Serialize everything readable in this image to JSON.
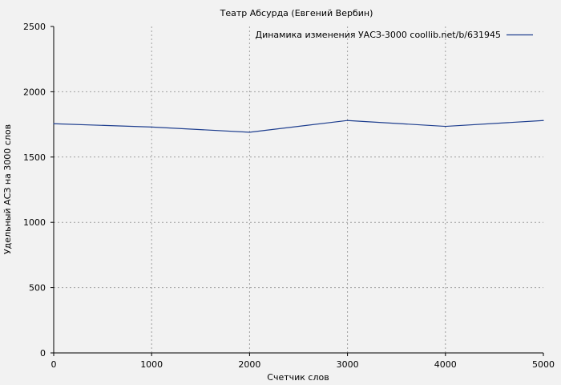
{
  "chart_data": {
    "type": "line",
    "title": "Театр Абсурда (Евгений Вербин)",
    "xlabel": "Счетчик слов",
    "ylabel": "Удельный АСЗ на 3000 слов",
    "xlim": [
      0,
      5000
    ],
    "ylim": [
      0,
      2500
    ],
    "x_ticks": [
      0,
      1000,
      2000,
      3000,
      4000,
      5000
    ],
    "y_ticks": [
      0,
      500,
      1000,
      1500,
      2000,
      2500
    ],
    "grid": true,
    "legend_position": "top-right",
    "series": [
      {
        "name": "Динамика изменения УАСЗ-3000 coollib.net/b/631945",
        "color": "#1f3f8f",
        "x": [
          0,
          1000,
          2000,
          3000,
          4000,
          5000
        ],
        "y": [
          1755,
          1730,
          1690,
          1780,
          1735,
          1780
        ]
      }
    ]
  }
}
